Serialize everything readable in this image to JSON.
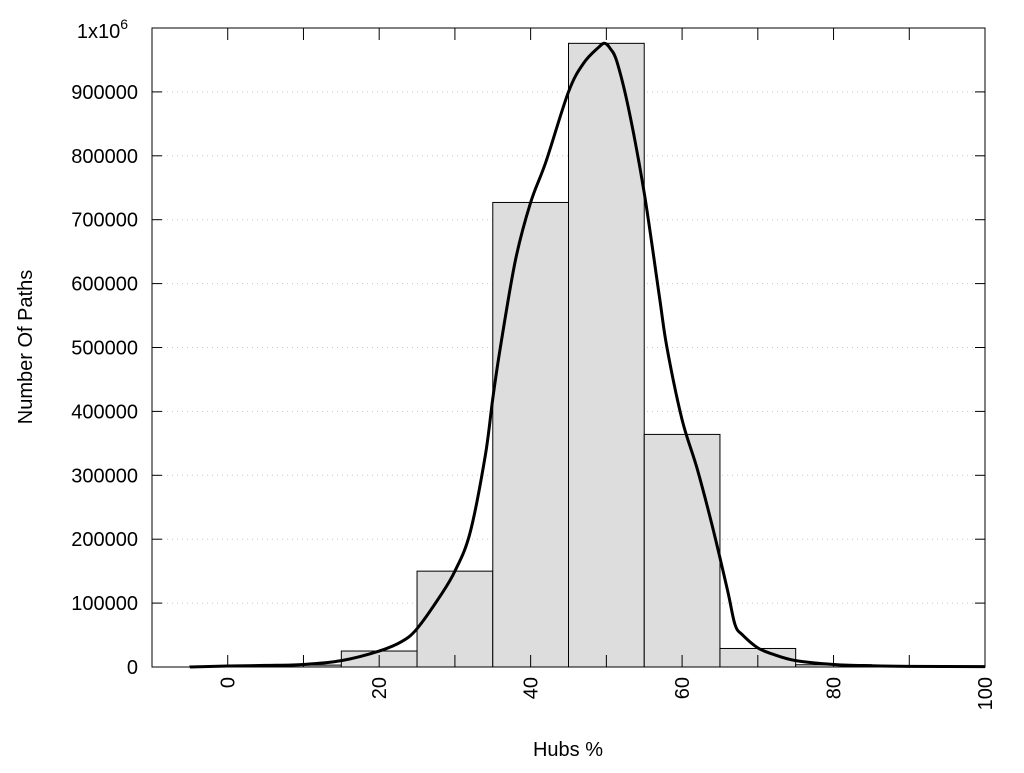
{
  "chart_data": {
    "type": "bar",
    "title": "",
    "xlabel": "Hubs %",
    "ylabel": "Number Of Paths",
    "xlim": [
      -10,
      100
    ],
    "ylim": [
      0,
      1000000
    ],
    "grid": "horizontal dotted",
    "x_ticks": [
      0,
      20,
      40,
      60,
      80,
      100
    ],
    "x_tick_labels": [
      "0",
      "20",
      "40",
      "60",
      "80",
      "100"
    ],
    "x_minor_tick_step": 10,
    "y_ticks": [
      0,
      100000,
      200000,
      300000,
      400000,
      500000,
      600000,
      700000,
      800000,
      900000,
      1000000
    ],
    "y_tick_labels": [
      "0",
      "100000",
      "200000",
      "300000",
      "400000",
      "500000",
      "600000",
      "700000",
      "800000",
      "900000"
    ],
    "y_top_label_base": "1x10",
    "y_top_label_exp": "6",
    "bar_width": 10,
    "bar_color": "#dddddd",
    "bars": {
      "x": [
        0,
        10,
        20,
        30,
        40,
        50,
        60,
        70,
        80,
        90,
        100
      ],
      "values": [
        1500,
        3000,
        25000,
        150000,
        727000,
        976000,
        364000,
        29000,
        3500,
        1000,
        1000
      ]
    },
    "curve": {
      "color": "#000000",
      "x": [
        -5,
        0,
        5,
        10,
        15,
        20,
        23,
        25,
        28,
        30,
        32,
        34,
        35,
        36,
        38,
        40,
        42,
        45,
        47,
        49,
        49.8,
        50.5,
        51.4,
        53,
        55,
        57,
        58,
        60,
        62,
        64,
        66,
        67,
        68,
        70,
        72,
        75,
        80,
        85,
        90,
        100
      ],
      "y": [
        0,
        1500,
        2500,
        4000,
        10000,
        25000,
        40000,
        60000,
        110000,
        150000,
        210000,
        330000,
        420000,
        500000,
        637000,
        727000,
        790000,
        900000,
        945000,
        970000,
        976000,
        968000,
        947000,
        870000,
        742000,
        580000,
        500000,
        387000,
        310000,
        220000,
        120000,
        66000,
        50000,
        30000,
        20000,
        10000,
        4000,
        2000,
        1000,
        500
      ]
    }
  }
}
